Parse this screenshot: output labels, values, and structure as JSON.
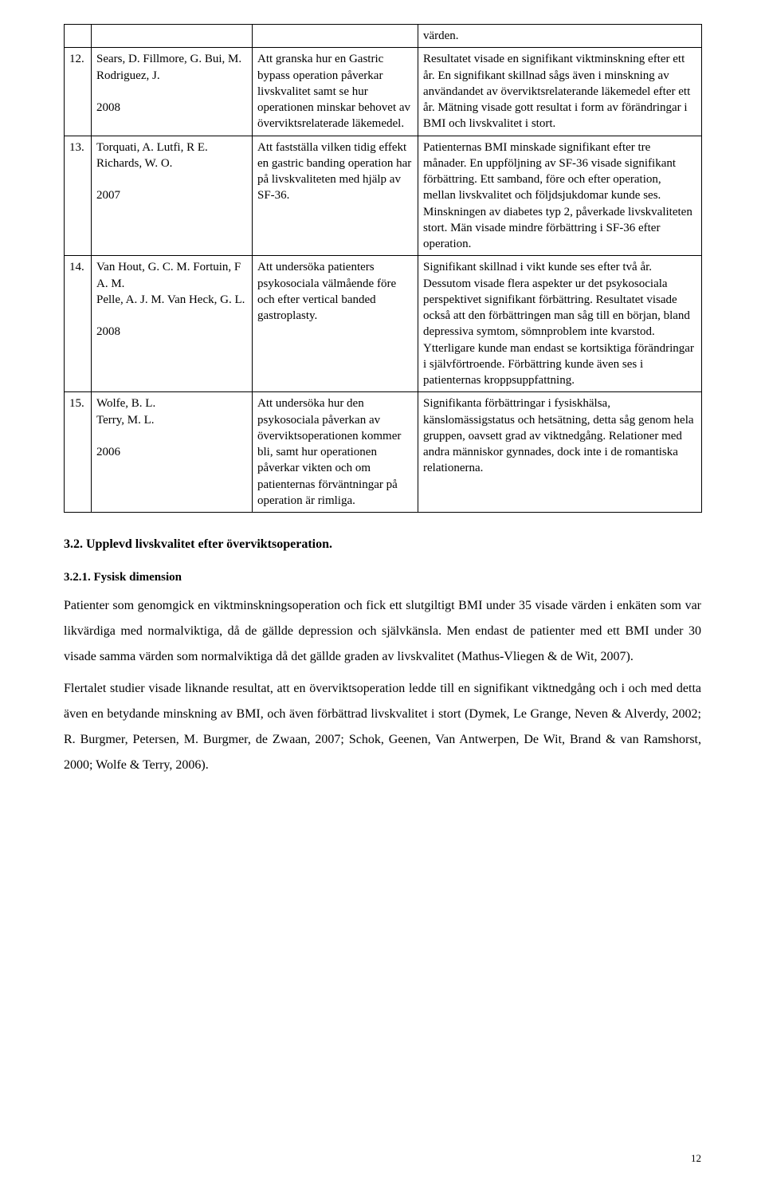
{
  "table": {
    "rows": [
      {
        "num": "",
        "col2": "",
        "col3": "",
        "col4": "värden."
      },
      {
        "num": "12.",
        "col2": "Sears, D. Fillmore, G. Bui, M. Rodriguez, J.\n\n2008",
        "col3": "Att granska hur en Gastric bypass operation påverkar livskvalitet samt se hur operationen minskar behovet av överviktsrelaterade läkemedel.",
        "col4": "Resultatet visade en signifikant viktminskning efter ett år. En signifikant skillnad sågs även i minskning av användandet av överviktsrelaterande läkemedel efter ett år. Mätning visade gott resultat i form av förändringar i BMI och livskvalitet i stort."
      },
      {
        "num": "13.",
        "col2": "Torquati, A. Lutfi, R E. Richards, W. O.\n\n2007",
        "col3": "Att fastställa vilken tidig effekt en gastric banding operation har på livskvaliteten med hjälp av SF-36.",
        "col4": "Patienternas BMI minskade signifikant efter tre månader. En uppföljning av SF-36 visade signifikant förbättring. Ett samband, före och efter operation, mellan livskvalitet och följdsjukdomar kunde ses. Minskningen av diabetes typ 2, påverkade livskvaliteten stort. Män visade mindre förbättring i SF-36 efter operation."
      },
      {
        "num": "14.",
        "col2": "Van Hout, G. C. M. Fortuin, F A. M.\nPelle, A. J. M. Van Heck, G. L.\n\n2008",
        "col3": "Att undersöka patienters psykosociala välmående före och efter vertical banded gastroplasty.",
        "col4": "Signifikant skillnad i vikt kunde ses efter två år. Dessutom visade flera aspekter ur det psykosociala perspektivet signifikant förbättring. Resultatet visade också att den förbättringen man såg till en början, bland depressiva symtom, sömnproblem inte kvarstod. Ytterligare kunde man endast se kortsiktiga förändringar i självförtroende. Förbättring kunde även ses i patienternas kroppsuppfattning."
      },
      {
        "num": "15.",
        "col2": "Wolfe, B. L.\nTerry, M. L.\n\n2006",
        "col3": "Att undersöka hur den psykosociala påverkan av överviktsoperationen kommer bli, samt hur operationen påverkar vikten och om patienternas förväntningar på operation är rimliga.",
        "col4": "Signifikanta förbättringar i fysiskhälsa, känslomässigstatus och hetsätning, detta såg genom hela gruppen, oavsett grad av viktnedgång. Relationer med andra människor gynnades, dock inte i de romantiska relationerna."
      }
    ]
  },
  "section_title": "3.2. Upplevd livskvalitet efter överviktsoperation.",
  "subsection_title": "3.2.1. Fysisk dimension",
  "paragraphs": [
    "Patienter som genomgick en viktminskningsoperation och fick ett slutgiltigt BMI under 35 visade värden i enkäten som var likvärdiga med normalviktiga, då de gällde depression och självkänsla. Men endast de patienter med ett BMI under 30 visade samma värden som normalviktiga då det gällde graden av livskvalitet (Mathus-Vliegen & de Wit, 2007).",
    "Flertalet studier visade liknande resultat, att en överviktsoperation ledde till en signifikant viktnedgång och i och med detta även en betydande minskning av BMI, och även förbättrad livskvalitet i stort (Dymek, Le Grange, Neven & Alverdy, 2002; R. Burgmer, Petersen, M. Burgmer, de Zwaan, 2007; Schok, Geenen, Van Antwerpen, De Wit, Brand & van Ramshorst, 2000; Wolfe & Terry, 2006)."
  ],
  "page_number": "12"
}
